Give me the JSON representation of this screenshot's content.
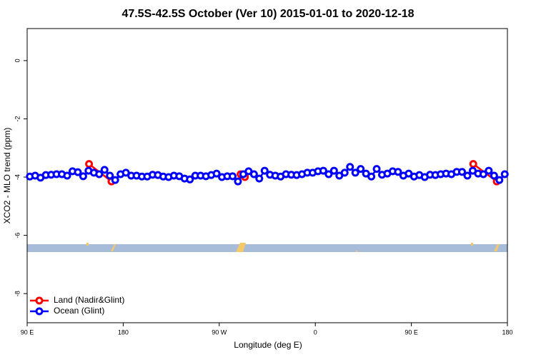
{
  "chart_data": {
    "type": "line",
    "title": "47.5S-42.5S October (Ver 10)   2015-01-01 to 2020-12-18",
    "x_label": "Longitude (deg E)",
    "y_label": "XCO2 - MLO trend (ppm)",
    "xlim": [
      90,
      540
    ],
    "ylim": [
      -9,
      1.1
    ],
    "xticks": [
      {
        "value": 90,
        "label": "90 E"
      },
      {
        "value": 180,
        "label": "180"
      },
      {
        "value": 270,
        "label": "90 W"
      },
      {
        "value": 360,
        "label": "0"
      },
      {
        "value": 450,
        "label": "90 E"
      },
      {
        "value": 540,
        "label": "180"
      }
    ],
    "yticks": [
      0,
      -2,
      -4,
      -6,
      -8
    ],
    "legend": "bottomleft",
    "series": [
      {
        "name": "Land (Nadir&Glint)",
        "color": "#ff0000",
        "x": [
          148,
          169,
          null,
          290,
          294,
          null,
          508,
          530
        ],
        "values": [
          -3.55,
          -4.15,
          null,
          -3.9,
          -4.0,
          null,
          -3.55,
          -4.15
        ]
      },
      {
        "name": "Ocean (Glint)",
        "color": "#0000ff",
        "x": [
          92.5,
          97.5,
          102.5,
          107.5,
          112.5,
          117.5,
          122.5,
          127.5,
          132.5,
          137.5,
          142.5,
          147.5,
          152.5,
          157.5,
          162.5,
          167.5,
          172.5,
          177.5,
          182.5,
          187.5,
          192.5,
          197.5,
          202.5,
          207.5,
          212.5,
          217.5,
          222.5,
          227.5,
          232.5,
          237.5,
          242.5,
          247.5,
          252.5,
          257.5,
          262.5,
          267.5,
          272.5,
          277.5,
          282.5,
          287.5,
          292.5,
          297.5,
          302.5,
          307.5,
          312.5,
          317.5,
          322.5,
          327.5,
          332.5,
          337.5,
          342.5,
          347.5,
          352.5,
          357.5,
          362.5,
          367.5,
          372.5,
          377.5,
          382.5,
          387.5,
          392.5,
          397.5,
          402.5,
          407.5,
          412.5,
          417.5,
          422.5,
          427.5,
          432.5,
          437.5,
          442.5,
          447.5,
          452.5,
          457.5,
          462.5,
          467.5,
          472.5,
          477.5,
          482.5,
          487.5,
          492.5,
          497.5,
          502.5,
          507.5,
          512.5,
          517.5,
          522.5,
          527.5,
          532.5,
          537.5
        ],
        "values": [
          -3.98,
          -3.95,
          -4.02,
          -3.93,
          -3.92,
          -3.9,
          -3.9,
          -3.95,
          -3.8,
          -3.83,
          -3.97,
          -3.78,
          -3.85,
          -3.9,
          -3.75,
          -3.95,
          -4.1,
          -3.9,
          -3.85,
          -3.95,
          -3.95,
          -3.98,
          -3.98,
          -3.92,
          -3.93,
          -3.98,
          -4.0,
          -3.95,
          -3.97,
          -4.05,
          -4.08,
          -3.95,
          -3.95,
          -3.97,
          -3.93,
          -3.88,
          -4.0,
          -3.97,
          -3.97,
          -4.15,
          -3.9,
          -3.8,
          -3.9,
          -4.05,
          -3.78,
          -3.92,
          -3.95,
          -3.98,
          -3.9,
          -3.92,
          -3.93,
          -3.9,
          -3.85,
          -3.85,
          -3.8,
          -3.78,
          -3.9,
          -3.78,
          -3.95,
          -3.85,
          -3.65,
          -3.85,
          -3.72,
          -3.88,
          -3.98,
          -3.72,
          -3.92,
          -3.88,
          -3.8,
          -3.82,
          -3.95,
          -3.88,
          -3.98,
          -3.93,
          -4.0,
          -3.92,
          -3.93,
          -3.9,
          -3.88,
          -3.9,
          -3.82,
          -3.82,
          -3.95,
          -3.78,
          -3.88,
          -3.9,
          -3.78,
          -3.95,
          -4.1,
          -3.9
        ]
      }
    ]
  }
}
